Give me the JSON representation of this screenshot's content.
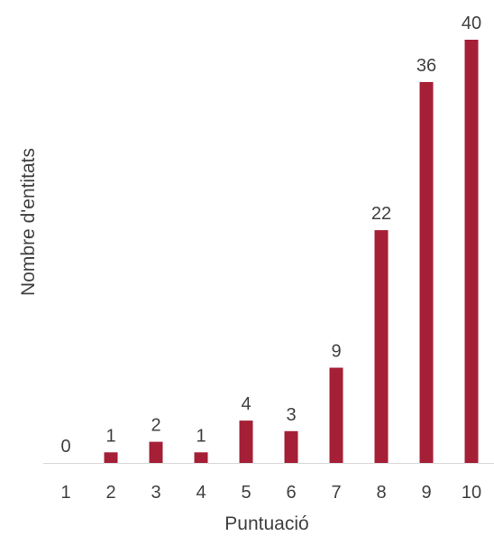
{
  "chart_data": {
    "type": "bar",
    "categories": [
      "1",
      "2",
      "3",
      "4",
      "5",
      "6",
      "7",
      "8",
      "9",
      "10"
    ],
    "values": [
      0,
      1,
      2,
      1,
      4,
      3,
      9,
      22,
      36,
      40
    ],
    "title": "",
    "xlabel": "Puntuació",
    "ylabel": "Nombre d'entitats",
    "ylim": [
      0,
      40
    ],
    "grid": false,
    "legend": "none",
    "bar_color": "#a51f36",
    "axis_color": "#d9d9d9",
    "text_color": "#404040"
  }
}
